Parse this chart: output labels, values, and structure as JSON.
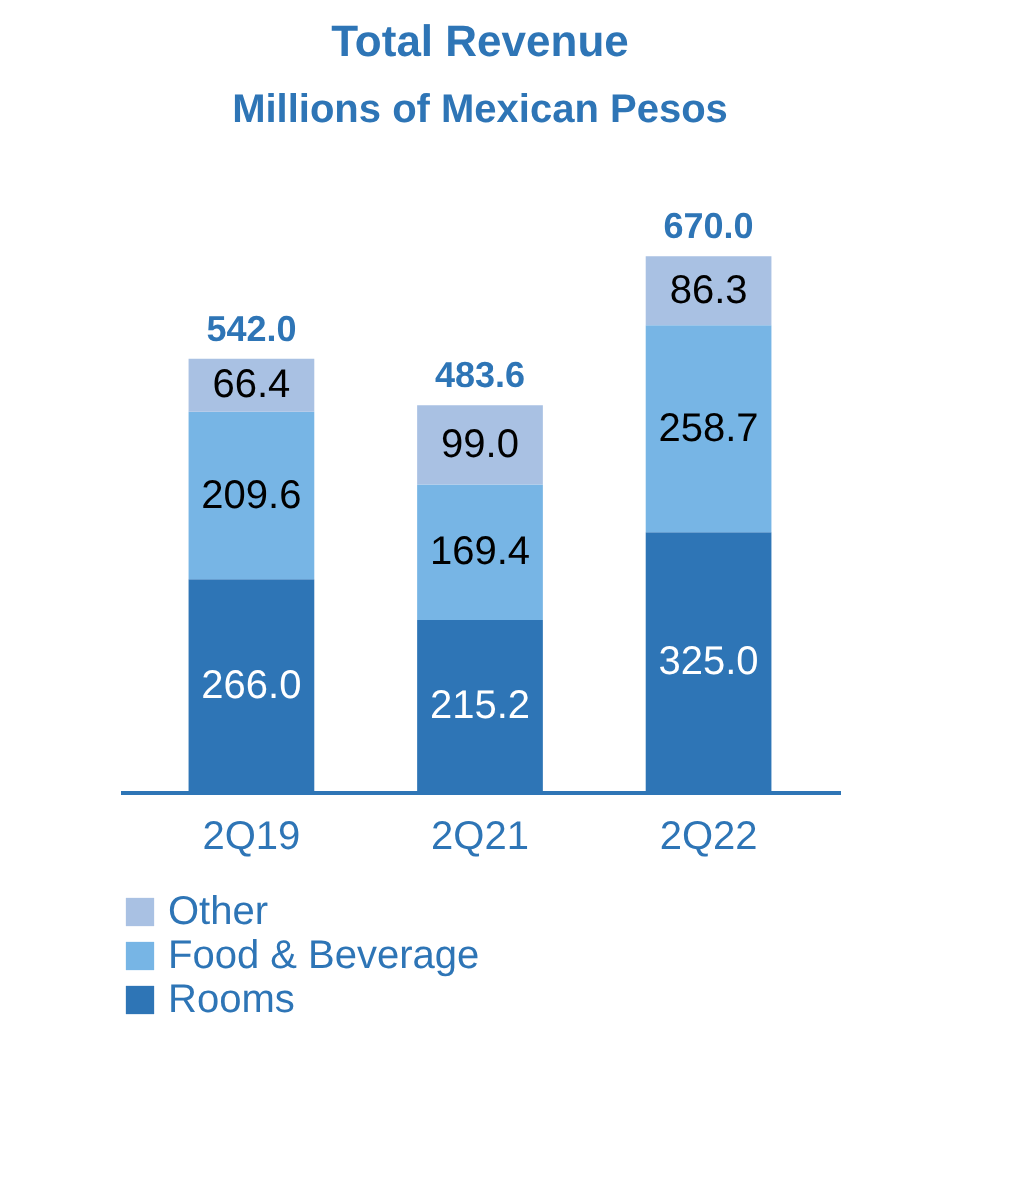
{
  "chart_data": {
    "type": "bar",
    "title": "Total Revenue",
    "subtitle": "Millions of Mexican Pesos",
    "categories": [
      "2Q19",
      "2Q21",
      "2Q22"
    ],
    "stacked": true,
    "legend": "bottom",
    "grid": false,
    "series": [
      {
        "name": "Rooms",
        "color": "#2e75b6",
        "values": [
          266.0,
          215.2,
          325.0
        ],
        "value_labels": [
          "266.0",
          "215.2",
          "325.0"
        ]
      },
      {
        "name": "Food & Beverage",
        "color": "#77b5e5",
        "values": [
          209.6,
          169.4,
          258.7
        ],
        "value_labels": [
          "209.6",
          "169.4",
          "258.7"
        ]
      },
      {
        "name": "Other",
        "color": "#a9c1e3",
        "values": [
          66.4,
          99.0,
          86.3
        ],
        "value_labels": [
          "66.4",
          "99.0",
          "86.3"
        ]
      }
    ],
    "totals": [
      "542.0",
      "483.6",
      "670.0"
    ]
  }
}
